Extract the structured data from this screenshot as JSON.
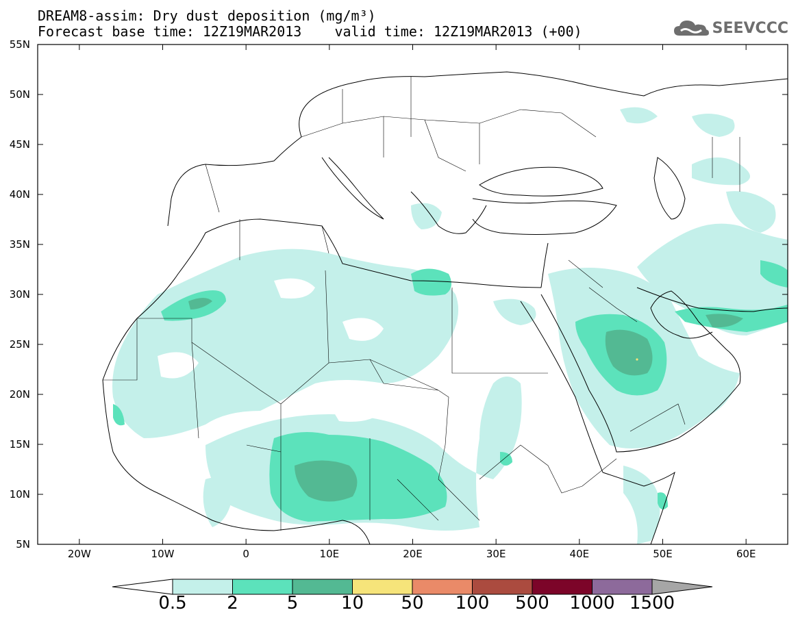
{
  "title": {
    "line1": "DREAM8-assim: Dry dust deposition (mg/m³)",
    "line2": "Forecast base time: 12Z19MAR2013    valid time: 12Z19MAR2013 (+00)"
  },
  "logo": {
    "text": "SEEVCCC",
    "icon": "cloud-icon",
    "color": "#6e6e6e"
  },
  "map": {
    "lon_range": [
      -25,
      65
    ],
    "lat_range": [
      5,
      55
    ],
    "lat_ticks": [
      {
        "value": 55,
        "label": "55N"
      },
      {
        "value": 50,
        "label": "50N"
      },
      {
        "value": 45,
        "label": "45N"
      },
      {
        "value": 40,
        "label": "40N"
      },
      {
        "value": 35,
        "label": "35N"
      },
      {
        "value": 30,
        "label": "30N"
      },
      {
        "value": 25,
        "label": "25N"
      },
      {
        "value": 20,
        "label": "20N"
      },
      {
        "value": 15,
        "label": "15N"
      },
      {
        "value": 10,
        "label": "10N"
      },
      {
        "value": 5,
        "label": "5N"
      }
    ],
    "lon_ticks": [
      {
        "value": -20,
        "label": "20W"
      },
      {
        "value": -10,
        "label": "10W"
      },
      {
        "value": 0,
        "label": "0"
      },
      {
        "value": 10,
        "label": "10E"
      },
      {
        "value": 20,
        "label": "20E"
      },
      {
        "value": 30,
        "label": "30E"
      },
      {
        "value": 40,
        "label": "40E"
      },
      {
        "value": 50,
        "label": "50E"
      },
      {
        "value": 60,
        "label": "60E"
      }
    ]
  },
  "colorbar": {
    "labels": [
      "0.5",
      "2",
      "5",
      "10",
      "50",
      "100",
      "500",
      "1000",
      "1500"
    ],
    "colors": [
      "#c4f0ea",
      "#5ce2bb",
      "#53b993",
      "#f6e47a",
      "#ea8a68",
      "#ab4b3f",
      "#7c0529",
      "#8d6a9b"
    ],
    "under_color": "#ffffff",
    "over_color": "#a6a6a6"
  },
  "fill_colors": {
    "level1": "#c4f0ea",
    "level2": "#5ce2bb",
    "level3": "#53b993",
    "level4": "#f6e47a"
  }
}
